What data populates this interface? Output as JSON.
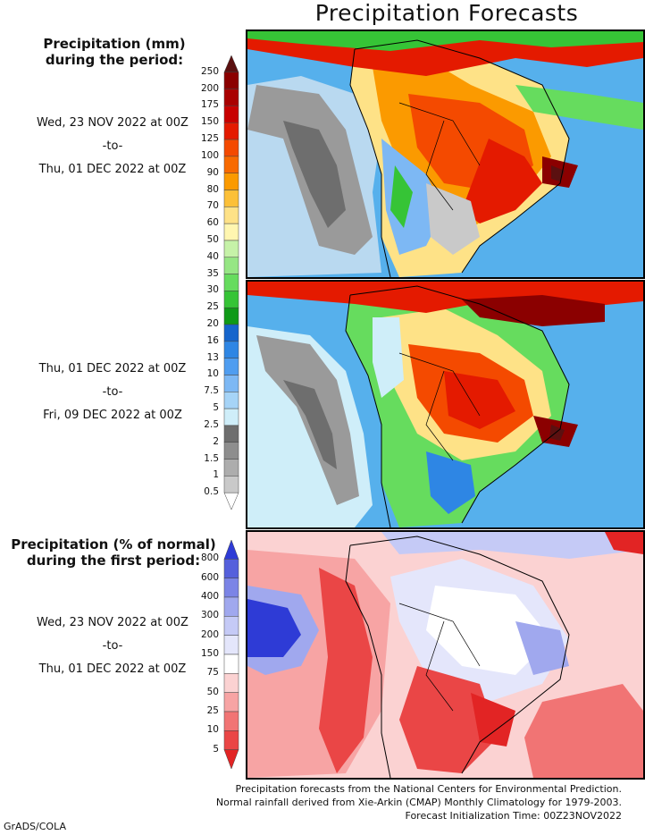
{
  "title": "Precipitation Forecasts",
  "legend_top": {
    "header_line1": "Precipitation (mm)",
    "header_line2": "during the period:",
    "labels": [
      "250",
      "200",
      "175",
      "150",
      "125",
      "100",
      "90",
      "80",
      "70",
      "60",
      "50",
      "40",
      "35",
      "30",
      "25",
      "20",
      "16",
      "13",
      "10",
      "7.5",
      "5",
      "2.5",
      "2",
      "1.5",
      "1",
      "0.5"
    ],
    "colors": [
      "#5b1010",
      "#8b0000",
      "#a90000",
      "#c80000",
      "#e41a00",
      "#f44a00",
      "#f86a00",
      "#fb9a00",
      "#fcc038",
      "#fee287",
      "#fff6b0",
      "#c6f2a8",
      "#96e684",
      "#66dc5e",
      "#36c436",
      "#0f9a17",
      "#1565cc",
      "#2e86e4",
      "#4f9df0",
      "#7db8f4",
      "#a6d4f7",
      "#cfeef9",
      "#6e6e6e",
      "#8e8e8e",
      "#adadad",
      "#c9c9c9",
      "#ffffff"
    ]
  },
  "period1": {
    "from": "Wed, 23 NOV 2022 at 00Z",
    "to_word": "-to-",
    "to": "Thu, 01 DEC 2022 at 00Z"
  },
  "period2": {
    "from": "Thu, 01 DEC 2022 at 00Z",
    "to_word": "-to-",
    "to": "Fri, 09 DEC 2022 at 00Z"
  },
  "legend_bottom": {
    "header_line1": "Precipitation (% of normal)",
    "header_line2": "during the first period:",
    "labels": [
      "800",
      "600",
      "400",
      "300",
      "200",
      "150",
      "75",
      "50",
      "25",
      "10",
      "5"
    ],
    "colors": [
      "#2e3bd6",
      "#5560dc",
      "#7b84e6",
      "#a0a8ee",
      "#c5caf6",
      "#e4e6fb",
      "#ffffff",
      "#fbd2d2",
      "#f7a4a4",
      "#f17474",
      "#ea4646",
      "#e22424"
    ]
  },
  "period3": {
    "from": "Wed, 23 NOV 2022 at 00Z",
    "to_word": "-to-",
    "to": "Thu, 01 DEC 2022 at 00Z"
  },
  "footer": {
    "line1": "Precipitation forecasts from the National Centers for Environmental Prediction.",
    "line2": "Normal rainfall derived from Xie-Arkin (CMAP) Monthly Climatology for 1979-2003.",
    "line3": "Forecast Initialization Time: 00Z23NOV2022"
  },
  "credit": "GrADS/COLA"
}
